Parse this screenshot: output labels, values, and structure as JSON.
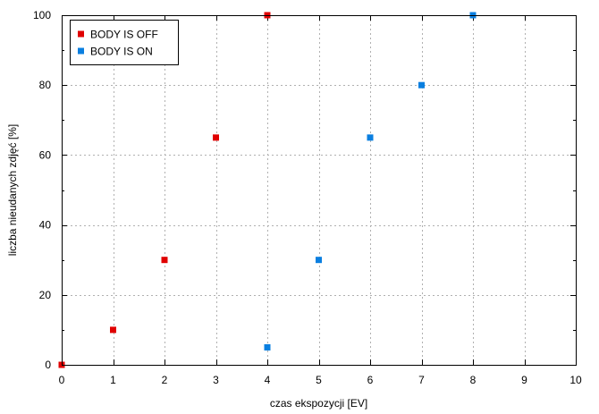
{
  "chart_data": {
    "type": "scatter",
    "title": "",
    "xlabel": "czas ekspozycji [EV]",
    "ylabel": "liczba nieudanych zdjęć [%]",
    "xlim": [
      0,
      10
    ],
    "ylim": [
      0,
      100
    ],
    "x_ticks": [
      0,
      1,
      2,
      3,
      4,
      5,
      6,
      7,
      8,
      9,
      10
    ],
    "y_ticks": [
      0,
      20,
      40,
      60,
      80,
      100
    ],
    "grid": true,
    "legend_position": "top-left",
    "series": [
      {
        "name": "BODY IS OFF",
        "color": "#e00000",
        "marker": "square",
        "points": [
          [
            0,
            0
          ],
          [
            1,
            10
          ],
          [
            2,
            30
          ],
          [
            3,
            65
          ],
          [
            4,
            100
          ]
        ]
      },
      {
        "name": "BODY IS ON",
        "color": "#0a7fe0",
        "marker": "square",
        "points": [
          [
            4,
            5
          ],
          [
            5,
            30
          ],
          [
            6,
            65
          ],
          [
            7,
            80
          ],
          [
            8,
            100
          ]
        ]
      }
    ]
  }
}
